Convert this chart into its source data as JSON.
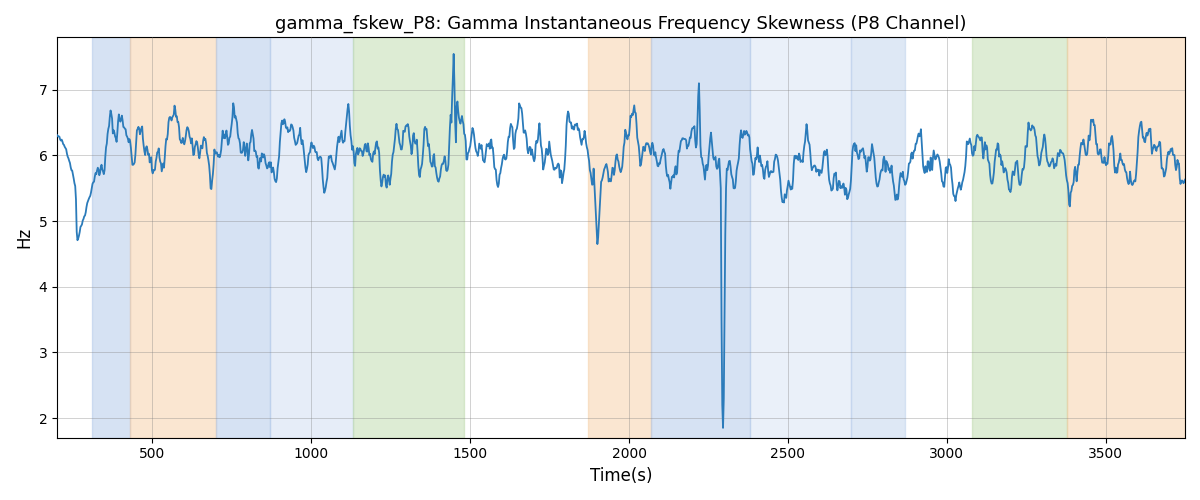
{
  "title": "gamma_fskew_P8: Gamma Instantaneous Frequency Skewness (P8 Channel)",
  "xlabel": "Time(s)",
  "ylabel": "Hz",
  "xlim": [
    200,
    3750
  ],
  "ylim": [
    1.7,
    7.8
  ],
  "yticks": [
    2,
    3,
    4,
    5,
    6,
    7
  ],
  "xticks": [
    500,
    1000,
    1500,
    2000,
    2500,
    3000,
    3500
  ],
  "line_color": "#2b7bba",
  "line_width": 1.3,
  "bg_bands": [
    {
      "xmin": 310,
      "xmax": 430,
      "color": "#aec6e8",
      "alpha": 0.5
    },
    {
      "xmin": 430,
      "xmax": 700,
      "color": "#f5c89a",
      "alpha": 0.45
    },
    {
      "xmin": 700,
      "xmax": 870,
      "color": "#aec6e8",
      "alpha": 0.5
    },
    {
      "xmin": 870,
      "xmax": 1130,
      "color": "#aec6e8",
      "alpha": 0.3
    },
    {
      "xmin": 1130,
      "xmax": 1480,
      "color": "#b5d5a0",
      "alpha": 0.45
    },
    {
      "xmin": 1870,
      "xmax": 2070,
      "color": "#f5c89a",
      "alpha": 0.45
    },
    {
      "xmin": 2070,
      "xmax": 2380,
      "color": "#aec6e8",
      "alpha": 0.5
    },
    {
      "xmin": 2380,
      "xmax": 2700,
      "color": "#aec6e8",
      "alpha": 0.25
    },
    {
      "xmin": 2700,
      "xmax": 2870,
      "color": "#aec6e8",
      "alpha": 0.4
    },
    {
      "xmin": 3080,
      "xmax": 3380,
      "color": "#b5d5a0",
      "alpha": 0.45
    },
    {
      "xmin": 3380,
      "xmax": 3750,
      "color": "#f5c89a",
      "alpha": 0.45
    }
  ],
  "seed": 42
}
